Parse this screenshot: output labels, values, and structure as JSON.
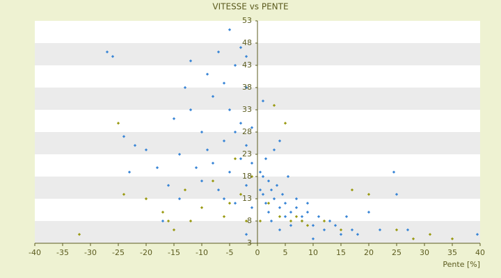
{
  "chart_data": {
    "type": "scatter",
    "title": "VITESSE vs PENTE",
    "x_label": "Pente [%]",
    "xlim": [
      -40,
      40
    ],
    "xticks": [
      -40,
      -35,
      -30,
      -25,
      -20,
      -15,
      -10,
      -5,
      0,
      5,
      10,
      15,
      20,
      25,
      30,
      35,
      40
    ],
    "ylim": [
      3,
      53
    ],
    "yticks": [
      3,
      8,
      13,
      18,
      23,
      28,
      33,
      38,
      43,
      48,
      53
    ],
    "grid": true,
    "band_color": "#ebebeb",
    "series": [
      {
        "color": "#3a86d6",
        "x": [
          -27,
          -26,
          -24,
          -23,
          -22,
          -20,
          -18,
          -17,
          -16,
          -15,
          -14,
          -14,
          -13,
          -12,
          -12,
          -11,
          -10,
          -10,
          -9,
          -9,
          -8,
          -8,
          -7,
          -7,
          -6,
          -6,
          -5,
          -5,
          -5,
          -4,
          -4,
          -4,
          -3,
          -3,
          -3,
          -2,
          -2,
          -2,
          -1,
          -1,
          -1,
          0.5,
          0.5,
          1,
          1,
          1.5,
          1.5,
          2,
          2,
          2.5,
          2.5,
          3,
          3,
          3.5,
          4,
          4,
          4.5,
          5,
          5,
          5.5,
          6,
          6,
          7,
          7,
          8,
          8,
          9,
          9,
          10,
          10,
          11,
          12,
          13,
          14,
          15,
          16,
          17,
          18,
          20,
          22,
          24.5,
          25,
          27,
          39.5,
          -2,
          1,
          4,
          -6,
          -2
        ],
        "values": [
          46,
          45,
          27,
          19,
          25,
          24,
          20,
          8,
          16,
          31,
          23,
          13,
          38,
          33,
          44,
          20,
          28,
          17,
          41,
          24,
          36,
          21,
          46,
          15,
          39,
          26,
          51,
          33,
          19,
          43,
          28,
          12,
          47,
          30,
          22,
          38,
          25,
          16,
          29,
          21,
          11,
          19,
          15,
          18,
          14,
          22,
          12,
          17,
          10,
          15,
          8,
          24,
          13,
          16,
          11,
          6,
          14,
          12,
          9,
          18,
          10,
          7,
          13,
          11,
          8,
          9,
          12,
          10,
          7,
          4,
          9,
          6,
          8,
          7,
          5,
          9,
          6,
          5,
          10,
          6,
          19,
          14,
          6,
          5,
          45,
          35,
          26,
          13,
          5
        ]
      },
      {
        "color": "#9a9a12",
        "x": [
          -32,
          -24,
          -20,
          -17,
          -16,
          -15,
          -13,
          -12,
          -10,
          -8,
          -6,
          -5,
          -4,
          -3,
          -2,
          -1,
          0.5,
          2,
          3,
          4,
          5,
          6,
          7,
          8,
          9,
          12,
          15,
          17,
          20,
          25,
          28,
          31,
          35,
          -25
        ],
        "values": [
          5,
          14,
          13,
          10,
          8,
          6,
          15,
          8,
          11,
          17,
          9,
          12,
          22,
          14,
          8,
          18,
          8,
          12,
          34,
          9,
          30,
          8,
          9,
          8,
          7,
          8,
          6,
          15,
          14,
          6,
          4,
          5,
          4,
          30
        ]
      }
    ]
  }
}
